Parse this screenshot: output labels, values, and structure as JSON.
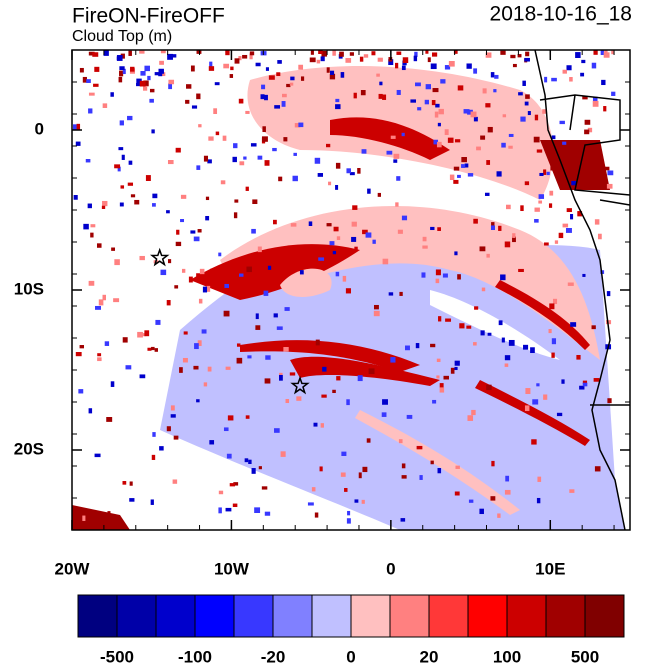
{
  "header": {
    "title": "FireON-FireOFF",
    "subtitle": "Cloud Top (m)",
    "date": "2018-10-16_18"
  },
  "map": {
    "lon_range": [
      -20,
      15
    ],
    "lat_range": [
      -25,
      5
    ],
    "lon_ticks": [
      {
        "value": -20,
        "label": "20W"
      },
      {
        "value": -10,
        "label": "10W"
      },
      0,
      {
        "value": 10,
        "label": "10E"
      }
    ],
    "lat_ticks": [
      0,
      {
        "value": -10,
        "label": "10S"
      },
      {
        "value": -20,
        "label": "20S"
      }
    ],
    "markers": [
      {
        "lon": -14.5,
        "lat": -8
      },
      {
        "lon": -5.7,
        "lat": -16
      }
    ]
  },
  "colorbar": {
    "colors": [
      "#000080",
      "#0000a8",
      "#0000cc",
      "#0000ff",
      "#3838ff",
      "#8080ff",
      "#c0c0ff",
      "#ffc0c0",
      "#ff8080",
      "#ff3838",
      "#ff0000",
      "#cc0000",
      "#a00000",
      "#800000"
    ],
    "labels": [
      -500,
      -100,
      -20,
      0,
      20,
      100,
      500
    ]
  }
}
